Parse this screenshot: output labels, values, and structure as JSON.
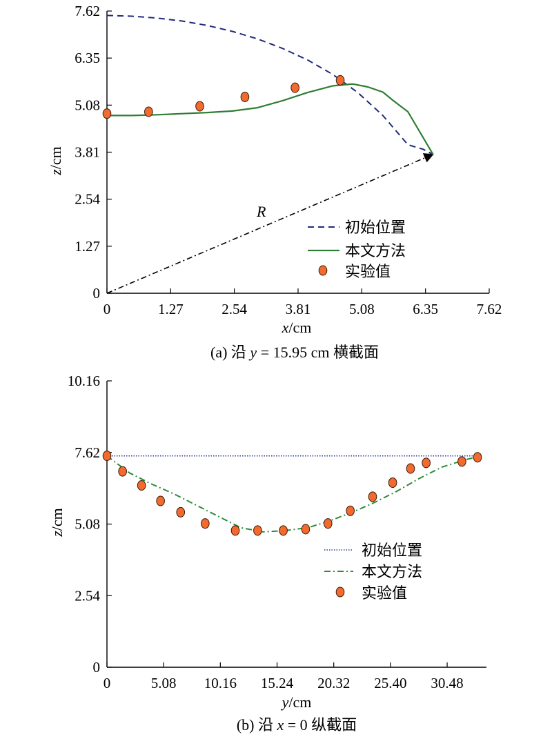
{
  "chart_data": [
    {
      "type": "line",
      "caption_prefix": "(a) 沿 ",
      "caption_var": "y",
      "caption_suffix": " = 15.95 cm 横截面",
      "xlabel_var": "x",
      "xlabel_unit": "/cm",
      "ylabel_var": "z",
      "ylabel_unit": "/cm",
      "xlim": [
        0,
        7.62
      ],
      "ylim": [
        0,
        7.62
      ],
      "xticks": [
        "0",
        "1.27",
        "2.54",
        "3.81",
        "5.08",
        "6.35",
        "7.62"
      ],
      "yticks": [
        "0",
        "1.27",
        "2.54",
        "3.81",
        "5.08",
        "6.35",
        "7.62"
      ],
      "annotation": "R",
      "radius_vector": {
        "from": [
          0,
          0
        ],
        "to": [
          6.5,
          3.75
        ]
      },
      "legend": [
        {
          "label": "初始位置",
          "style": "dashed",
          "color": "#1f2a7a"
        },
        {
          "label": "本文方法",
          "style": "solid",
          "color": "#2e7d32"
        },
        {
          "label": "实验值",
          "style": "marker",
          "color": "#f26a2e"
        }
      ],
      "series": [
        {
          "name": "初始位置",
          "kind": "dashed",
          "color": "#1f2a7a",
          "x": [
            0,
            0.5,
            1.0,
            1.5,
            2.0,
            2.5,
            3.0,
            3.5,
            4.0,
            4.5,
            5.0,
            5.5,
            6.0,
            6.3,
            6.5
          ],
          "y": [
            7.5,
            7.48,
            7.43,
            7.35,
            7.23,
            7.07,
            6.87,
            6.61,
            6.3,
            5.91,
            5.42,
            4.8,
            4.01,
            3.89,
            3.75
          ]
        },
        {
          "name": "本文方法",
          "kind": "solid",
          "color": "#2e7d32",
          "x": [
            0,
            0.5,
            1.0,
            1.5,
            2.0,
            2.5,
            3.0,
            3.5,
            4.0,
            4.5,
            4.9,
            5.2,
            5.5,
            5.7,
            6.0,
            6.5
          ],
          "y": [
            4.8,
            4.8,
            4.82,
            4.85,
            4.88,
            4.92,
            5.01,
            5.2,
            5.42,
            5.6,
            5.65,
            5.57,
            5.43,
            5.21,
            4.9,
            3.75
          ]
        },
        {
          "name": "实验值",
          "kind": "marker",
          "color": "#f26a2e",
          "x": [
            0,
            0.83,
            1.85,
            2.75,
            3.75,
            4.65
          ],
          "y": [
            4.85,
            4.9,
            5.05,
            5.3,
            5.55,
            5.75
          ]
        }
      ]
    },
    {
      "type": "line",
      "caption_prefix": "(b) 沿 ",
      "caption_var": "x",
      "caption_suffix": " = 0 纵截面",
      "xlabel_var": "y",
      "xlabel_unit": "/cm",
      "ylabel_var": "z",
      "ylabel_unit": "/cm",
      "xlim": [
        0,
        34
      ],
      "ylim": [
        0,
        10.16
      ],
      "xticks": [
        "0",
        "5.08",
        "10.16",
        "15.24",
        "20.32",
        "25.40",
        "30.48"
      ],
      "yticks": [
        "0",
        "2.54",
        "5.08",
        "7.62",
        "10.16"
      ],
      "legend": [
        {
          "label": "初始位置",
          "style": "dotted",
          "color": "#2a3a9a"
        },
        {
          "label": "本文方法",
          "style": "dashdot",
          "color": "#2e8b3a"
        },
        {
          "label": "实验值",
          "style": "marker",
          "color": "#f26a2e"
        }
      ],
      "series": [
        {
          "name": "初始位置",
          "kind": "dotted",
          "color": "#2a3a9a",
          "x": [
            0,
            33.1
          ],
          "y": [
            7.5,
            7.5
          ]
        },
        {
          "name": "本文方法",
          "kind": "dashdot",
          "color": "#2e8b3a",
          "x": [
            0,
            2,
            4,
            6,
            8,
            10,
            12,
            14,
            16,
            18,
            20,
            22,
            24,
            26,
            28,
            30,
            32,
            33
          ],
          "y": [
            7.5,
            6.9,
            6.5,
            6.15,
            5.75,
            5.35,
            4.95,
            4.8,
            4.85,
            4.95,
            5.2,
            5.5,
            5.85,
            6.25,
            6.7,
            7.1,
            7.35,
            7.45
          ]
        },
        {
          "name": "实验值",
          "kind": "marker",
          "color": "#f26a2e",
          "x": [
            0,
            1.4,
            3.1,
            4.8,
            6.6,
            8.8,
            11.5,
            13.5,
            15.8,
            17.8,
            19.8,
            21.8,
            23.8,
            25.6,
            27.2,
            28.6,
            31.8,
            33.2
          ],
          "y": [
            7.5,
            6.95,
            6.45,
            5.9,
            5.5,
            5.1,
            4.85,
            4.85,
            4.85,
            4.9,
            5.1,
            5.55,
            6.05,
            6.55,
            7.05,
            7.25,
            7.3,
            7.45
          ]
        }
      ]
    }
  ]
}
